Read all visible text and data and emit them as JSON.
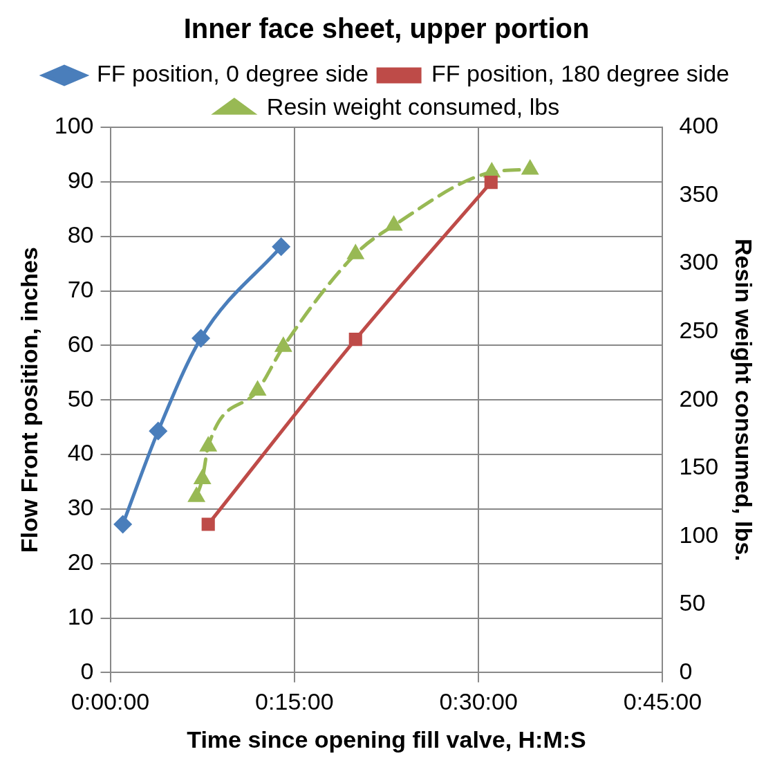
{
  "chart_data": {
    "type": "line",
    "title": "Inner face sheet, upper portion",
    "xlabel": "Time since opening fill valve, H:M:S",
    "ylabel": "Flow Front position, inches",
    "y2label": "Resin weight consumed, lbs.",
    "xlim": [
      0,
      0.75
    ],
    "xticks": [
      {
        "value": 0,
        "label": "0:00:00"
      },
      {
        "value": 0.25,
        "label": "0:15:00"
      },
      {
        "value": 0.5,
        "label": "0:30:00"
      },
      {
        "value": 0.75,
        "label": "0:45:00"
      }
    ],
    "ylim": [
      0,
      100
    ],
    "yticks": [
      0,
      10,
      20,
      30,
      40,
      50,
      60,
      70,
      80,
      90,
      100
    ],
    "y2lim": [
      0,
      400
    ],
    "y2ticks": [
      0,
      50,
      100,
      150,
      200,
      250,
      300,
      350,
      400
    ],
    "grid": true,
    "legend": "top",
    "series": [
      {
        "name": "FF position, 0 degree side",
        "color": "#4a7ebb",
        "marker": "diamond",
        "line_style": "solid",
        "x": [
          0.017,
          0.065,
          0.123,
          0.232
        ],
        "values": [
          27.2,
          44.3,
          61.3,
          78.1
        ]
      },
      {
        "name": "FF position, 180 degree side",
        "color": "#be4b48",
        "marker": "square",
        "line_style": "solid",
        "x": [
          0.133,
          0.333,
          0.517
        ],
        "values": [
          27.2,
          61.1,
          89.9
        ]
      },
      {
        "name": "Resin weight consumed, lbs",
        "color": "#98b954",
        "marker": "triangle",
        "line_style": "dashed",
        "axis": "y2",
        "x": [
          0.117,
          0.125,
          0.133,
          0.2,
          0.235,
          0.333,
          0.385,
          0.518,
          0.57
        ],
        "values": [
          129,
          142,
          166,
          207,
          239,
          307,
          328,
          367,
          369
        ]
      }
    ]
  }
}
